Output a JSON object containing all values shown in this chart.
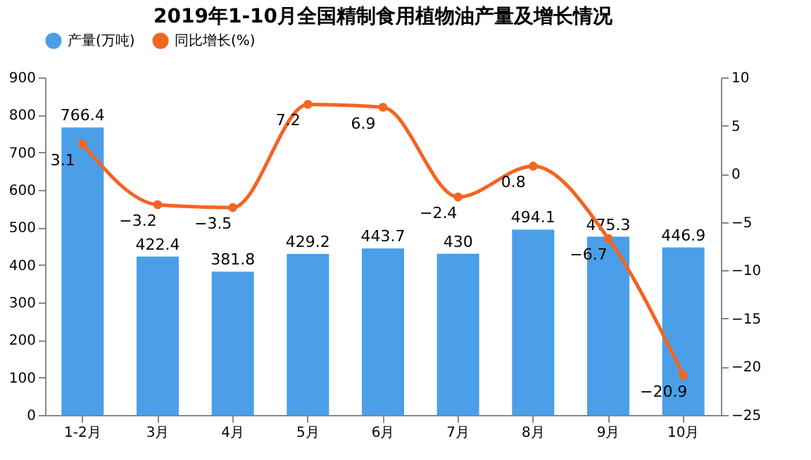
{
  "chart_data": {
    "type": "bar",
    "title": "2019年1-10月全国精制食用植物油产量及增长情况",
    "categories": [
      "1-2月",
      "3月",
      "4月",
      "5月",
      "6月",
      "7月",
      "8月",
      "9月",
      "10月"
    ],
    "series": [
      {
        "name": "产量(万吨)",
        "color": "#4a9fe8",
        "values": [
          766.4,
          422.4,
          381.8,
          429.2,
          443.7,
          430,
          494.1,
          475.3,
          446.9
        ]
      },
      {
        "name": "同比增长(%)",
        "type": "line",
        "axis": "y2",
        "color": "#f26522",
        "values": [
          3.1,
          -3.2,
          -3.5,
          7.2,
          6.9,
          -2.4,
          0.8,
          -6.7,
          -20.9
        ]
      }
    ],
    "ylim": [
      0,
      900
    ],
    "yticks": [
      0,
      100,
      200,
      300,
      400,
      500,
      600,
      700,
      800,
      900
    ],
    "y2lim": [
      -25,
      10
    ],
    "y2ticks": [
      -25,
      -20,
      -15,
      -10,
      -5,
      0,
      5,
      10
    ],
    "data_labels": true,
    "legend": "top",
    "marker": "circle",
    "grid": false
  }
}
